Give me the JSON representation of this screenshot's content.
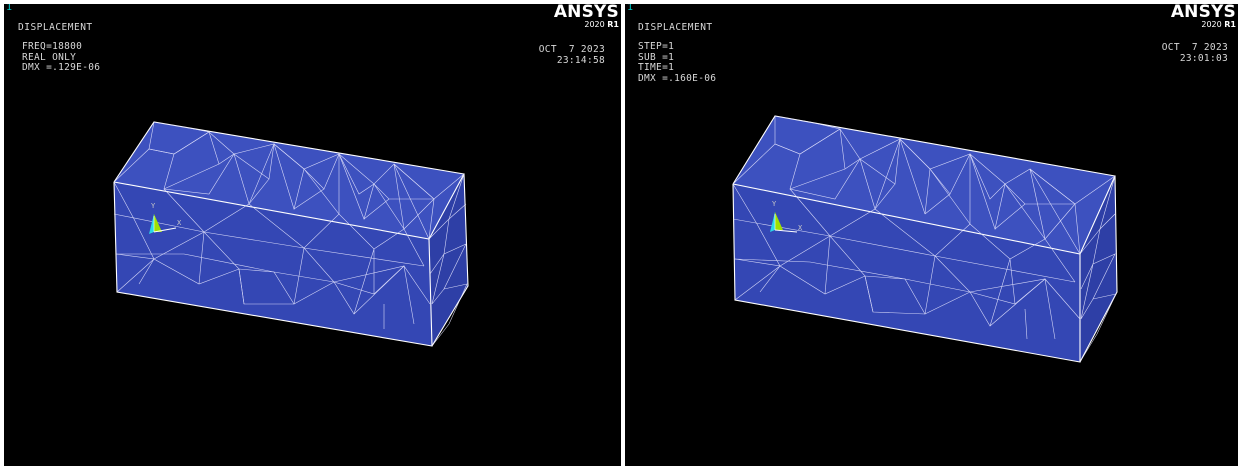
{
  "colors": {
    "background": "#000000",
    "model_fill": "#3447b4",
    "mesh_lines": "#e8e8ff",
    "window_number": "#00c8c8"
  },
  "left": {
    "window_number": "1",
    "title": "DISPLACEMENT",
    "info_lines": [
      "FREQ=18800",
      "REAL ONLY",
      "DMX =.129E-06"
    ],
    "date": "OCT  7 2023",
    "time": "23:14:58",
    "logo": "ANSYS",
    "version": "2020",
    "release": "R1",
    "axis_labels": {
      "y": "Y",
      "x": "X"
    }
  },
  "right": {
    "window_number": "1",
    "title": "DISPLACEMENT",
    "info_lines": [
      "STEP=1",
      "SUB =1",
      "TIME=1",
      "DMX =.160E-06"
    ],
    "date": "OCT  7 2023",
    "time": "23:01:03",
    "logo": "ANSYS",
    "version": "2020",
    "release": "R1",
    "axis_labels": {
      "y": "Y",
      "x": "X"
    }
  }
}
